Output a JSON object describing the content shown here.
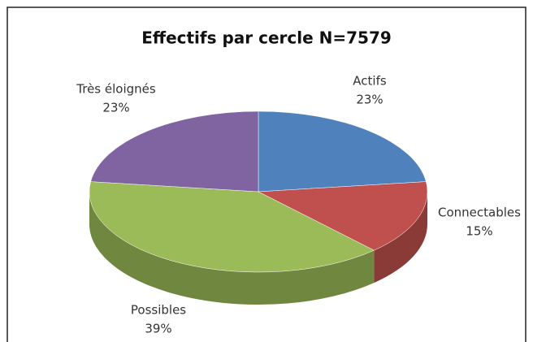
{
  "chart_data": {
    "type": "pie",
    "title": "Effectifs par cercle N=7579",
    "categories": [
      "Actifs",
      "Connectables",
      "Possibles",
      "Très éloignés"
    ],
    "values": [
      23,
      15,
      39,
      23
    ],
    "value_labels": [
      "23%",
      "15%",
      "39%",
      "23%"
    ],
    "colors": [
      "#4f81bd",
      "#c0504d",
      "#9bbb59",
      "#8064a2"
    ]
  }
}
